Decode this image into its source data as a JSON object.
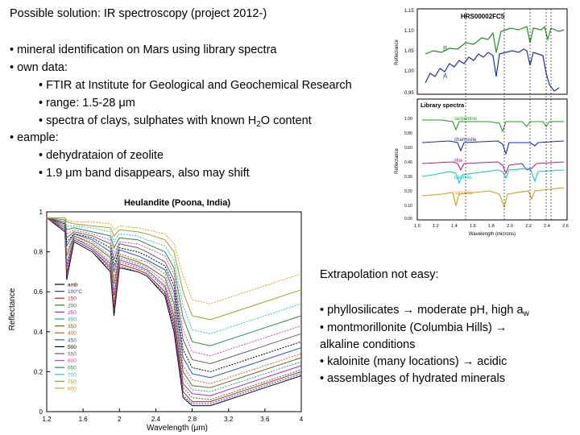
{
  "slide": {
    "title": "Possible solution: IR spectroscopy (project 2012-)",
    "b1": "• mineral identification on Mars using library spectra",
    "b2": "• own data:",
    "b2a": "• FTIR at Institute for Geological and Geochemical Research",
    "b2b": "• range: 1.5-28 μm",
    "b2c_pre": "• spectra of clays, sulphates with known H",
    "b2c_sub": "2",
    "b2c_post": "O content",
    "b3": "• eample:",
    "b3a": "• dehydrataion of zeolite",
    "b3b": "• 1.9 μm band disappears, also may shift",
    "r_title": "Extrapolation not easy:",
    "r1_pre": "• phyllosilicates → moderate pH, high a",
    "r1_sub": "w",
    "r2a": "• montmorillonite (Columbia Hills) →",
    "r2b": "alkaline conditions",
    "r3": "• kaloinite (many locations) → acidic",
    "r4": "• assemblages of hydrated minerals"
  },
  "mars_figure": {
    "top_panel": {
      "label": "HRS00002FC5",
      "ylabel": "Reflectance",
      "series_labels": [
        "B",
        "A"
      ],
      "yticks": [
        "1.15",
        "1.10",
        "1.05",
        "1.00",
        "0.95"
      ]
    },
    "bottom_panel": {
      "label": "Library spectra",
      "ylabel": "Reflectance",
      "series_labels": [
        "serpentine",
        "chamosite",
        "illite",
        "kaolinite",
        "saponite"
      ],
      "yticks": [
        "1.00",
        "0.90",
        "0.80",
        "0.70",
        "0.60",
        "0.50",
        "0.40",
        "0.30",
        "0.20",
        "0.10",
        "0.00"
      ],
      "xticks": [
        "1.0",
        "1.2",
        "1.4",
        "1.6",
        "1.8",
        "2.0",
        "2.2",
        "2.4",
        "2.6"
      ],
      "xlabel": "Wavelength (microns)"
    },
    "colors": {
      "green": "#1e8f1e",
      "blue": "#1f2fb0",
      "serpentine": "#1fa01f",
      "chamosite": "#1a2aa8",
      "illite": "#c0207a",
      "kaolinite": "#10c8d8",
      "saponite": "#d89a10"
    }
  },
  "chart_data": {
    "type": "line",
    "title": "Heulandite (Poona, India)",
    "xlabel": "Wavelength (μm)",
    "ylabel": "Reflectance",
    "xlim": [
      1.2,
      4.0
    ],
    "ylim": [
      0,
      1
    ],
    "xticks": [
      "1.2",
      "1.6",
      "2",
      "2.4",
      "2.8",
      "3.2",
      "3.6",
      "4"
    ],
    "yticks": [
      "0",
      "0.2",
      "0.4",
      "0.6",
      "0.8",
      "1"
    ],
    "legend": [
      "amb",
      "100°C",
      "150",
      "200",
      "250",
      "300",
      "350",
      "400",
      "450",
      "500",
      "550",
      "600",
      "650",
      "700",
      "750",
      "800"
    ],
    "colors": [
      "#000000",
      "#3030c0",
      "#c02020",
      "#208020",
      "#c020c0",
      "#20a0a0",
      "#806020",
      "#d06020",
      "#2060d0",
      "#000000",
      "#606060",
      "#e040a0",
      "#209040",
      "#30c0d0",
      "#a0a020",
      "#e0a020"
    ],
    "x": [
      1.2,
      1.4,
      1.42,
      1.5,
      1.7,
      1.9,
      1.94,
      2.0,
      2.2,
      2.3,
      2.5,
      2.6,
      2.7,
      2.8,
      3.0,
      3.2,
      3.4,
      3.6,
      3.8,
      4.0
    ],
    "series": [
      {
        "name": "amb",
        "values": [
          0.97,
          0.9,
          0.66,
          0.85,
          0.8,
          0.7,
          0.48,
          0.72,
          0.7,
          0.68,
          0.58,
          0.4,
          0.07,
          0.03,
          0.03,
          0.06,
          0.09,
          0.12,
          0.15,
          0.18
        ]
      },
      {
        "name": "100°C",
        "values": [
          0.97,
          0.9,
          0.67,
          0.85,
          0.8,
          0.71,
          0.5,
          0.73,
          0.7,
          0.68,
          0.59,
          0.42,
          0.08,
          0.04,
          0.04,
          0.07,
          0.1,
          0.13,
          0.16,
          0.19
        ]
      },
      {
        "name": "150",
        "values": [
          0.97,
          0.91,
          0.69,
          0.86,
          0.81,
          0.72,
          0.52,
          0.74,
          0.71,
          0.69,
          0.6,
          0.44,
          0.1,
          0.05,
          0.05,
          0.08,
          0.11,
          0.14,
          0.17,
          0.2
        ]
      },
      {
        "name": "200",
        "values": [
          0.97,
          0.91,
          0.71,
          0.86,
          0.81,
          0.73,
          0.55,
          0.75,
          0.72,
          0.7,
          0.62,
          0.46,
          0.12,
          0.07,
          0.06,
          0.09,
          0.12,
          0.15,
          0.18,
          0.21
        ]
      },
      {
        "name": "250",
        "values": [
          0.97,
          0.92,
          0.73,
          0.87,
          0.82,
          0.74,
          0.58,
          0.76,
          0.73,
          0.71,
          0.63,
          0.48,
          0.14,
          0.09,
          0.08,
          0.11,
          0.14,
          0.17,
          0.2,
          0.23
        ]
      },
      {
        "name": "300",
        "values": [
          0.97,
          0.92,
          0.75,
          0.87,
          0.83,
          0.75,
          0.61,
          0.77,
          0.74,
          0.72,
          0.65,
          0.51,
          0.17,
          0.11,
          0.1,
          0.13,
          0.16,
          0.19,
          0.22,
          0.25
        ]
      },
      {
        "name": "350",
        "values": [
          0.97,
          0.93,
          0.78,
          0.88,
          0.84,
          0.77,
          0.64,
          0.78,
          0.75,
          0.73,
          0.67,
          0.54,
          0.2,
          0.13,
          0.12,
          0.15,
          0.18,
          0.21,
          0.24,
          0.27
        ]
      },
      {
        "name": "400",
        "values": [
          0.97,
          0.93,
          0.8,
          0.88,
          0.85,
          0.78,
          0.67,
          0.79,
          0.76,
          0.75,
          0.69,
          0.57,
          0.23,
          0.16,
          0.14,
          0.17,
          0.2,
          0.23,
          0.26,
          0.29
        ]
      },
      {
        "name": "450",
        "values": [
          0.97,
          0.94,
          0.83,
          0.89,
          0.86,
          0.8,
          0.7,
          0.81,
          0.78,
          0.76,
          0.71,
          0.6,
          0.27,
          0.19,
          0.17,
          0.2,
          0.23,
          0.26,
          0.29,
          0.32
        ]
      },
      {
        "name": "500",
        "values": [
          0.97,
          0.94,
          0.85,
          0.89,
          0.87,
          0.82,
          0.73,
          0.82,
          0.8,
          0.78,
          0.73,
          0.63,
          0.31,
          0.22,
          0.2,
          0.23,
          0.26,
          0.29,
          0.32,
          0.35
        ]
      },
      {
        "name": "550",
        "values": [
          0.97,
          0.95,
          0.87,
          0.9,
          0.88,
          0.84,
          0.76,
          0.84,
          0.82,
          0.8,
          0.75,
          0.66,
          0.36,
          0.26,
          0.24,
          0.27,
          0.3,
          0.33,
          0.36,
          0.39
        ]
      },
      {
        "name": "600",
        "values": [
          0.97,
          0.95,
          0.89,
          0.91,
          0.89,
          0.86,
          0.79,
          0.85,
          0.84,
          0.82,
          0.78,
          0.69,
          0.41,
          0.3,
          0.28,
          0.31,
          0.34,
          0.37,
          0.4,
          0.43
        ]
      },
      {
        "name": "650",
        "values": [
          0.97,
          0.96,
          0.91,
          0.92,
          0.9,
          0.88,
          0.82,
          0.87,
          0.86,
          0.84,
          0.8,
          0.72,
          0.47,
          0.35,
          0.33,
          0.36,
          0.39,
          0.42,
          0.45,
          0.48
        ]
      },
      {
        "name": "700",
        "values": [
          0.97,
          0.96,
          0.93,
          0.93,
          0.92,
          0.9,
          0.85,
          0.89,
          0.88,
          0.86,
          0.83,
          0.76,
          0.53,
          0.41,
          0.39,
          0.42,
          0.45,
          0.48,
          0.51,
          0.54
        ]
      },
      {
        "name": "750",
        "values": [
          0.97,
          0.97,
          0.95,
          0.94,
          0.93,
          0.92,
          0.88,
          0.91,
          0.9,
          0.89,
          0.86,
          0.8,
          0.6,
          0.48,
          0.46,
          0.49,
          0.52,
          0.55,
          0.58,
          0.61
        ]
      },
      {
        "name": "800",
        "values": [
          0.97,
          0.97,
          0.96,
          0.95,
          0.95,
          0.94,
          0.91,
          0.93,
          0.92,
          0.91,
          0.89,
          0.84,
          0.68,
          0.56,
          0.54,
          0.57,
          0.6,
          0.63,
          0.66,
          0.69
        ]
      }
    ]
  }
}
